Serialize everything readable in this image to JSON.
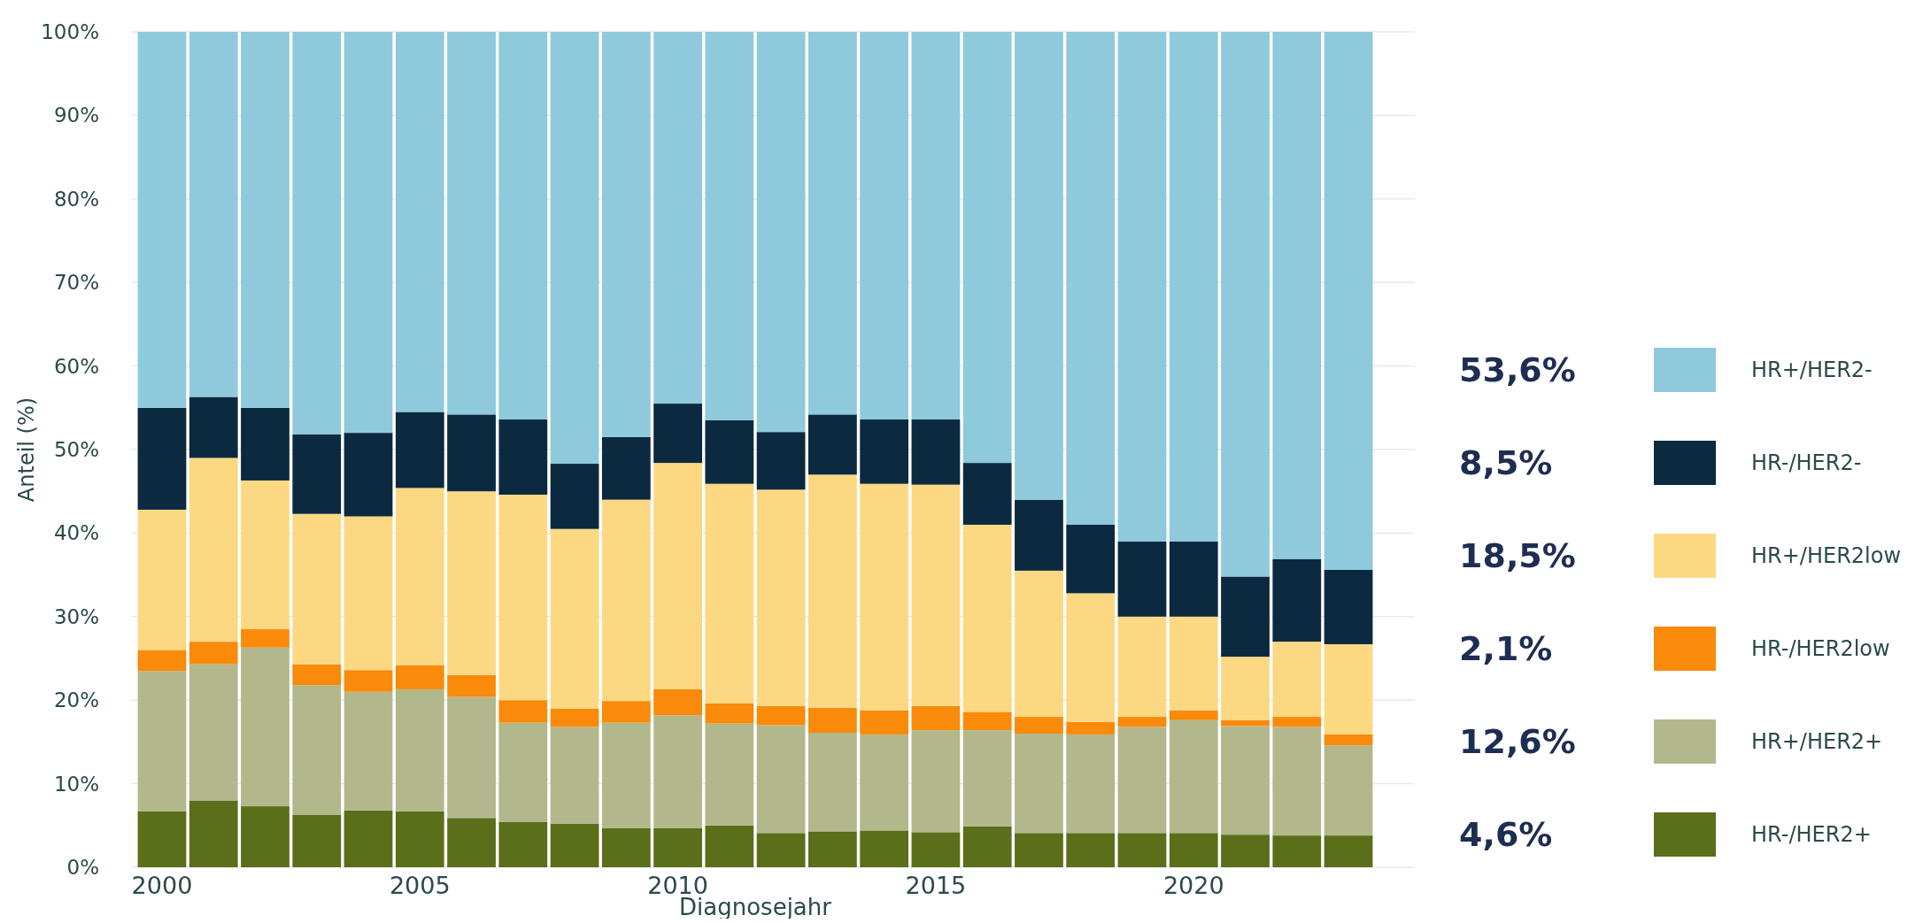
{
  "chart_data": {
    "type": "bar",
    "stacked": true,
    "xlabel": "Diagnosejahr",
    "ylabel": "Anteil (%)",
    "x": [
      2000,
      2001,
      2002,
      2003,
      2004,
      2005,
      2006,
      2007,
      2008,
      2009,
      2010,
      2011,
      2012,
      2013,
      2014,
      2015,
      2016,
      2017,
      2018,
      2019,
      2020,
      2021,
      2022,
      2023
    ],
    "xlim": [
      1999.4,
      2023.6
    ],
    "xticks": [
      2000,
      2005,
      2010,
      2015,
      2020
    ],
    "ylim": [
      0,
      100
    ],
    "yticks": [
      {
        "value": 0,
        "label": "0%"
      },
      {
        "value": 10,
        "label": "10%"
      },
      {
        "value": 20,
        "label": "20%"
      },
      {
        "value": 30,
        "label": "30%"
      },
      {
        "value": 40,
        "label": "40%"
      },
      {
        "value": 50,
        "label": "50%"
      },
      {
        "value": 60,
        "label": "60%"
      },
      {
        "value": 70,
        "label": "70%"
      },
      {
        "value": 80,
        "label": "80%"
      },
      {
        "value": 90,
        "label": "90%"
      },
      {
        "value": 100,
        "label": "100%"
      }
    ],
    "grid": "y",
    "legend": "right",
    "series": [
      {
        "name": "HR-/HER2+",
        "color": "#5b6e1a",
        "values": [
          6.7,
          8,
          7.3,
          6.3,
          6.8,
          6.7,
          5.9,
          5.4,
          5.2,
          4.7,
          4.7,
          5,
          4.1,
          4.3,
          4.4,
          4.2,
          4.9,
          4.1,
          4.1,
          4.1,
          4.1,
          3.9,
          3.8,
          3.8
        ]
      },
      {
        "name": "HR+/HER2+",
        "color": "#b3b88c",
        "values": [
          16.8,
          16.3,
          19,
          15.5,
          14.2,
          14.6,
          14.5,
          11.9,
          11.6,
          12.6,
          13.5,
          12.2,
          12.9,
          11.8,
          11.5,
          12.2,
          11.5,
          11.9,
          11.8,
          12.7,
          13.5,
          13,
          13,
          10.8
        ]
      },
      {
        "name": "HR-/HER2low",
        "color": "#f98a0a",
        "values": [
          2.5,
          2.7,
          2.2,
          2.5,
          2.6,
          2.9,
          2.6,
          2.7,
          2.2,
          2.6,
          3.1,
          2.4,
          2.3,
          3,
          2.9,
          2.9,
          2.2,
          2,
          1.5,
          1.2,
          1.2,
          0.7,
          1.2,
          1.3
        ]
      },
      {
        "name": "HR+/HER2low",
        "color": "#fdd882",
        "values": [
          16.8,
          22,
          17.8,
          18,
          18.4,
          21.2,
          22,
          24.6,
          21.5,
          24.1,
          27.1,
          26.3,
          25.9,
          27.9,
          27.1,
          26.5,
          22.4,
          17.5,
          15.4,
          12,
          11.2,
          7.6,
          9,
          10.8
        ]
      },
      {
        "name": "HR-/HER2-",
        "color": "#0b2a3f",
        "values": [
          12.2,
          7.3,
          8.7,
          9.5,
          10,
          9.1,
          9.2,
          9,
          7.8,
          7.5,
          7.1,
          7.6,
          6.9,
          7.2,
          7.7,
          7.8,
          7.4,
          8.5,
          8.2,
          9,
          9,
          9.6,
          9.9,
          8.9
        ]
      },
      {
        "name": "HR+/HER2-",
        "color": "#8ecadb",
        "values": [
          45,
          43.7,
          45,
          48.2,
          48,
          45.5,
          45.8,
          46.4,
          51.7,
          48.5,
          44.5,
          46.5,
          47.9,
          45.8,
          46.4,
          46.4,
          51.6,
          56,
          59,
          61,
          61,
          65.2,
          63.1,
          64.4
        ]
      }
    ],
    "annotations": [
      "4,6%",
      "12,6%",
      "2,1%",
      "18,5%",
      "8,5%",
      "53,6%"
    ]
  }
}
